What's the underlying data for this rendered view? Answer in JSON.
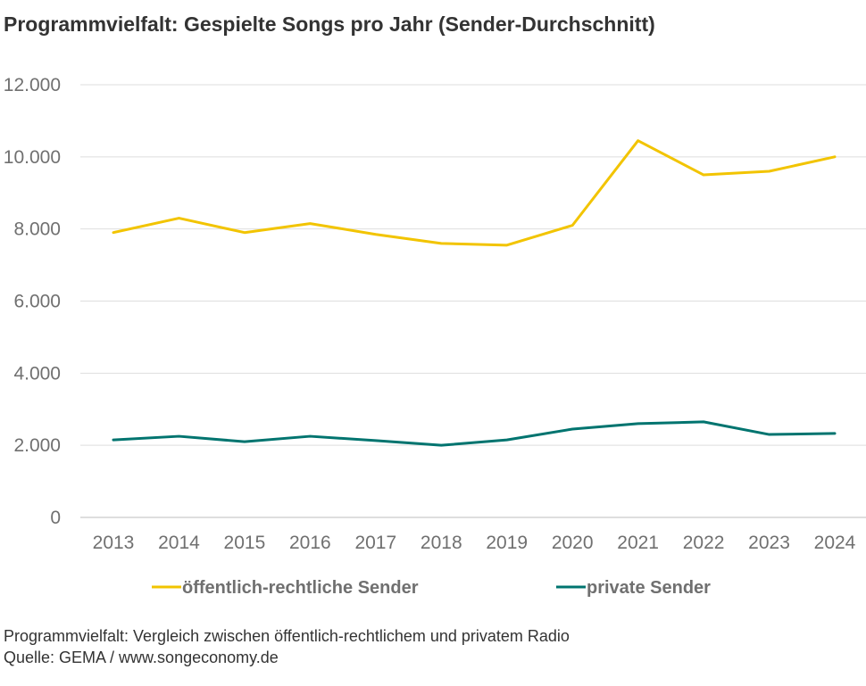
{
  "title": "Programmvielfalt: Gespielte Songs pro Jahr (Sender-Durchschnitt)",
  "footer": {
    "line1": "Programmvielfalt: Vergleich zwischen öffentlich-rechtlichem und privatem Radio",
    "line2": "Quelle: GEMA / www.songeconomy.de"
  },
  "chart_data": {
    "type": "line",
    "title": "Programmvielfalt: Gespielte Songs pro Jahr (Sender-Durchschnitt)",
    "xlabel": "",
    "ylabel": "",
    "categories": [
      "2013",
      "2014",
      "2015",
      "2016",
      "2017",
      "2018",
      "2019",
      "2020",
      "2021",
      "2022",
      "2023",
      "2024"
    ],
    "ylim": [
      0,
      12000
    ],
    "yticks": [
      0,
      2000,
      4000,
      6000,
      8000,
      10000,
      12000
    ],
    "ytick_labels": [
      "0",
      "2.000",
      "4.000",
      "6.000",
      "8.000",
      "10.000",
      "12.000"
    ],
    "grid": true,
    "legend_position": "bottom",
    "series": [
      {
        "name": "öffentlich-rechtliche Sender",
        "color": "#f2c400",
        "values": [
          7900,
          8300,
          7900,
          8150,
          7850,
          7600,
          7550,
          8100,
          10450,
          9500,
          9600,
          10000
        ]
      },
      {
        "name": "private Sender",
        "color": "#00746f",
        "values": [
          2150,
          2250,
          2100,
          2250,
          2130,
          2000,
          2150,
          2450,
          2600,
          2650,
          2300,
          2330
        ]
      }
    ]
  }
}
